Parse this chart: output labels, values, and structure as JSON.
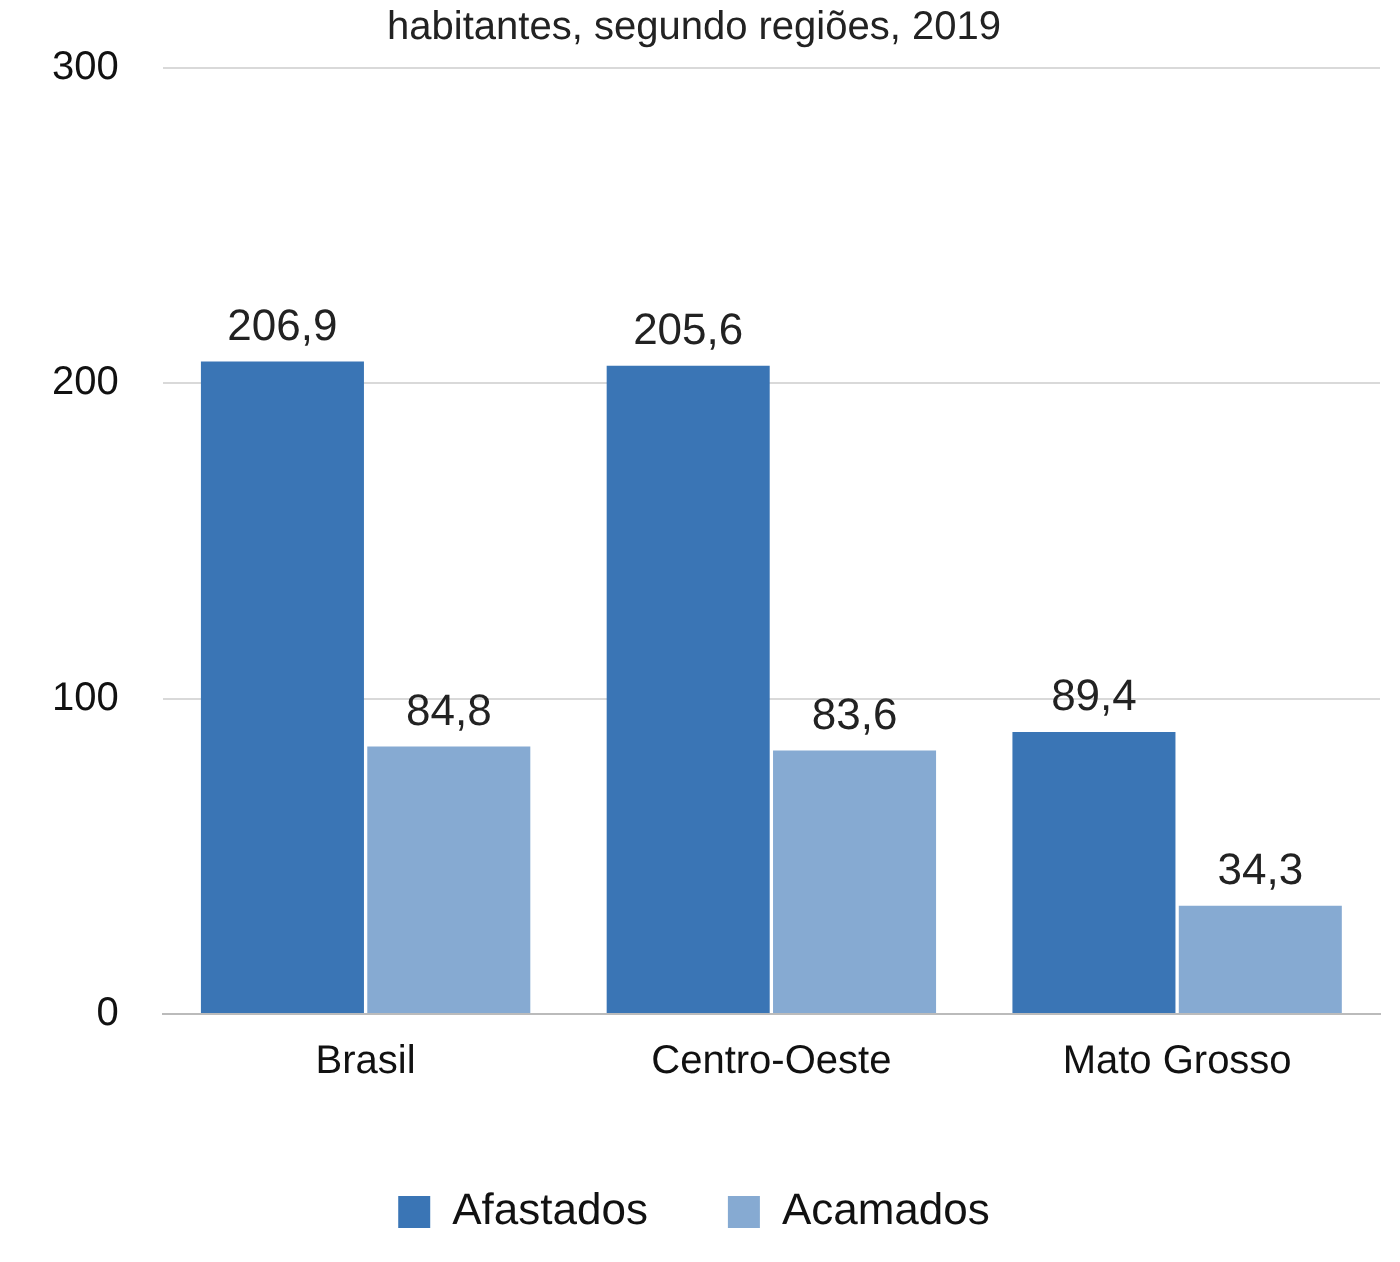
{
  "chart_data": {
    "type": "bar",
    "title": "habitantes, segundo regiões, 2019",
    "categories": [
      "Brasil",
      "Centro-Oeste",
      "Mato Grosso"
    ],
    "series": [
      {
        "name": "Afastados",
        "color": "#3a75b5",
        "values": [
          206.9,
          205.6,
          89.4
        ],
        "value_labels": [
          "206,9",
          "205,6",
          "89,4"
        ]
      },
      {
        "name": "Acamados",
        "color": "#86aad2",
        "values": [
          84.8,
          83.6,
          34.3
        ],
        "value_labels": [
          "84,8",
          "83,6",
          "34,3"
        ]
      }
    ],
    "ylim": [
      0,
      300
    ],
    "yticks": [
      0,
      100,
      200,
      300
    ],
    "grid": "y",
    "legend": "bottom"
  }
}
